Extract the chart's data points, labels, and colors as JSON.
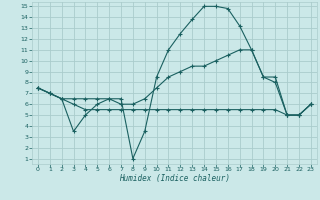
{
  "xlabel": "Humidex (Indice chaleur)",
  "background_color": "#cbe8e8",
  "grid_color": "#aacccc",
  "line_color": "#1a6060",
  "x_ticks": [
    0,
    1,
    2,
    3,
    4,
    5,
    6,
    7,
    8,
    9,
    10,
    11,
    12,
    13,
    14,
    15,
    16,
    17,
    18,
    19,
    20,
    21,
    22,
    23
  ],
  "y_ticks": [
    1,
    2,
    3,
    4,
    5,
    6,
    7,
    8,
    9,
    10,
    11,
    12,
    13,
    14,
    15
  ],
  "ylim": [
    0.5,
    15.4
  ],
  "xlim": [
    -0.5,
    23.5
  ],
  "line1_x": [
    0,
    1,
    2,
    3,
    4,
    5,
    6,
    7,
    8,
    9,
    10,
    11,
    12,
    13,
    14,
    15,
    16,
    17,
    18,
    19,
    20,
    21,
    22,
    23
  ],
  "line1_y": [
    7.5,
    7.0,
    6.5,
    3.5,
    5.0,
    6.0,
    6.5,
    6.5,
    1.0,
    3.5,
    8.5,
    11.0,
    12.5,
    13.8,
    15.0,
    15.0,
    14.8,
    13.2,
    11.0,
    8.5,
    8.0,
    5.0,
    5.0,
    6.0
  ],
  "line2_x": [
    0,
    1,
    2,
    3,
    4,
    5,
    6,
    7,
    8,
    9,
    10,
    11,
    12,
    13,
    14,
    15,
    16,
    17,
    18,
    19,
    20,
    21,
    22,
    23
  ],
  "line2_y": [
    7.5,
    7.0,
    6.5,
    6.5,
    6.5,
    6.5,
    6.5,
    6.0,
    6.0,
    6.5,
    7.5,
    8.5,
    9.0,
    9.5,
    9.5,
    10.0,
    10.5,
    11.0,
    11.0,
    8.5,
    8.5,
    5.0,
    5.0,
    6.0
  ],
  "line3_x": [
    0,
    1,
    2,
    3,
    4,
    5,
    6,
    7,
    8,
    9,
    10,
    11,
    12,
    13,
    14,
    15,
    16,
    17,
    18,
    19,
    20,
    21,
    22,
    23
  ],
  "line3_y": [
    7.5,
    7.0,
    6.5,
    6.0,
    5.5,
    5.5,
    5.5,
    5.5,
    5.5,
    5.5,
    5.5,
    5.5,
    5.5,
    5.5,
    5.5,
    5.5,
    5.5,
    5.5,
    5.5,
    5.5,
    5.5,
    5.0,
    5.0,
    6.0
  ]
}
